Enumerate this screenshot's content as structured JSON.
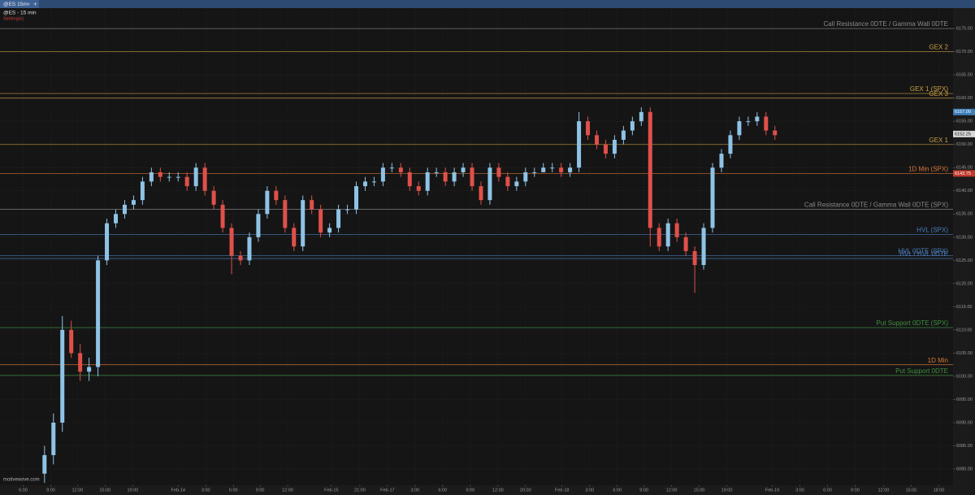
{
  "tab": "@ES 15m",
  "chart_data": {
    "type": "candlestick",
    "title": "@ES - 15 min",
    "subtitle": "Sterling(x)",
    "watermark": "motivewave.com",
    "xlim": [
      0,
      107
    ],
    "ylim": [
      6076.5,
      6179.4
    ],
    "grid": true,
    "up_color": "#8ec3e6",
    "down_color": "#e0504a",
    "x": [
      5,
      6,
      7,
      8,
      9,
      10,
      11,
      12,
      13,
      14,
      15,
      16,
      17,
      18,
      19,
      20,
      21,
      22,
      23,
      24,
      25,
      26,
      27,
      28,
      29,
      30,
      31,
      32,
      33,
      34,
      35,
      36,
      37,
      38,
      39,
      40,
      41,
      42,
      43,
      44,
      45,
      46,
      47,
      48,
      49,
      50,
      51,
      52,
      53,
      54,
      55,
      56,
      57,
      58,
      59,
      60,
      61,
      62,
      63,
      64,
      65,
      66,
      67,
      68,
      69,
      70,
      71,
      72,
      73,
      74,
      75,
      76,
      77,
      78,
      79,
      80,
      81,
      82,
      83,
      84,
      85,
      86,
      87
    ],
    "open": [
      6079,
      6083,
      6090,
      6110,
      6105,
      6101,
      6102,
      6125,
      6133,
      6135,
      6137,
      6138,
      6142,
      6144,
      6143,
      6143,
      6143,
      6141,
      6145,
      6140,
      6137,
      6132,
      6126,
      6125,
      6130,
      6135,
      6140,
      6138,
      6132,
      6128,
      6138,
      6136,
      6131,
      6132,
      6136,
      6136,
      6141,
      6142,
      6142,
      6145,
      6145,
      6144,
      6141,
      6140,
      6144,
      6144,
      6142,
      6144,
      6145,
      6141,
      6138,
      6145,
      6143,
      6141,
      6142,
      6144,
      6144,
      6145,
      6145,
      6144,
      6145,
      6155,
      6152,
      6150,
      6148,
      6151,
      6153,
      6155,
      6157,
      6132,
      6128,
      6133,
      6130,
      6127,
      6124,
      6132,
      6145,
      6148,
      6152,
      6155,
      6155,
      6156,
      6153
    ],
    "high": [
      6085,
      6092,
      6113,
      6112,
      6107,
      6104,
      6126,
      6134,
      6136,
      6138,
      6139,
      6143,
      6145,
      6145,
      6144,
      6144,
      6144,
      6146,
      6146,
      6141,
      6138,
      6133,
      6127,
      6131,
      6136,
      6141,
      6141,
      6139,
      6133,
      6139,
      6139,
      6137,
      6133,
      6137,
      6137,
      6142,
      6143,
      6143,
      6146,
      6146,
      6146,
      6145,
      6142,
      6145,
      6145,
      6145,
      6145,
      6146,
      6146,
      6142,
      6146,
      6146,
      6144,
      6143,
      6145,
      6145,
      6146,
      6146,
      6146,
      6146,
      6157,
      6156,
      6153,
      6151,
      6152,
      6154,
      6156,
      6158,
      6158,
      6133,
      6134,
      6134,
      6131,
      6128,
      6133,
      6146,
      6149,
      6153,
      6156,
      6156,
      6157,
      6157,
      6154
    ],
    "low": [
      6077,
      6081,
      6088,
      6104,
      6099,
      6099,
      6100,
      6124,
      6132,
      6134,
      6136,
      6137,
      6141,
      6142,
      6142,
      6142,
      6140,
      6140,
      6139,
      6136,
      6131,
      6122,
      6124,
      6124,
      6129,
      6134,
      6137,
      6131,
      6127,
      6127,
      6135,
      6130,
      6130,
      6131,
      6135,
      6135,
      6140,
      6141,
      6141,
      6144,
      6143,
      6140,
      6139,
      6139,
      6143,
      6141,
      6141,
      6143,
      6140,
      6137,
      6137,
      6142,
      6140,
      6140,
      6141,
      6143,
      6144,
      6144,
      6143,
      6143,
      6144,
      6151,
      6149,
      6147,
      6147,
      6150,
      6152,
      6154,
      6128,
      6127,
      6127,
      6129,
      6126,
      6118,
      6123,
      6131,
      6144,
      6147,
      6151,
      6154,
      6154,
      6152,
      6151
    ],
    "close": [
      6083,
      6090,
      6110,
      6105,
      6101,
      6102,
      6125,
      6133,
      6135,
      6137,
      6138,
      6142,
      6144,
      6143,
      6143,
      6143,
      6141,
      6145,
      6140,
      6137,
      6132,
      6126,
      6125,
      6130,
      6135,
      6140,
      6138,
      6132,
      6128,
      6138,
      6136,
      6131,
      6132,
      6136,
      6136,
      6141,
      6142,
      6142,
      6145,
      6145,
      6144,
      6141,
      6140,
      6144,
      6144,
      6142,
      6144,
      6145,
      6141,
      6138,
      6145,
      6143,
      6141,
      6142,
      6144,
      6144,
      6145,
      6145,
      6144,
      6145,
      6155,
      6152,
      6150,
      6148,
      6151,
      6153,
      6155,
      6157,
      6132,
      6128,
      6133,
      6130,
      6127,
      6124,
      6132,
      6145,
      6148,
      6152,
      6155,
      6155,
      6156,
      6153,
      6152
    ],
    "xticks": [
      {
        "value": 2.6,
        "label": "6:00"
      },
      {
        "value": 5.7,
        "label": "9:00"
      },
      {
        "value": 8.7,
        "label": "12:00"
      },
      {
        "value": 11.8,
        "label": "15:00"
      },
      {
        "value": 14.9,
        "label": "19:00"
      },
      {
        "value": 20.0,
        "label": "Feb-14"
      },
      {
        "value": 23.1,
        "label": "3:00"
      },
      {
        "value": 26.2,
        "label": "6:00"
      },
      {
        "value": 29.2,
        "label": "9:00"
      },
      {
        "value": 32.3,
        "label": "12:00"
      },
      {
        "value": 37.2,
        "label": "Feb-15"
      },
      {
        "value": 40.4,
        "label": "21:00"
      },
      {
        "value": 43.5,
        "label": "Feb-17"
      },
      {
        "value": 46.6,
        "label": "3:00"
      },
      {
        "value": 49.7,
        "label": "6:00"
      },
      {
        "value": 52.8,
        "label": "9:00"
      },
      {
        "value": 55.9,
        "label": "12:00"
      },
      {
        "value": 59.0,
        "label": "20:00"
      },
      {
        "value": 63.1,
        "label": "Feb-18"
      },
      {
        "value": 66.2,
        "label": "3:00"
      },
      {
        "value": 69.3,
        "label": "6:00"
      },
      {
        "value": 72.3,
        "label": "9:00"
      },
      {
        "value": 75.4,
        "label": "12:00"
      },
      {
        "value": 78.5,
        "label": "15:00"
      },
      {
        "value": 81.6,
        "label": "19:00"
      },
      {
        "value": 86.7,
        "label": "Feb-19"
      },
      {
        "value": 89.8,
        "label": "3:00"
      },
      {
        "value": 92.9,
        "label": "6:00"
      },
      {
        "value": 96.0,
        "label": "9:00"
      },
      {
        "value": 99.2,
        "label": "12:00"
      },
      {
        "value": 102.3,
        "label": "15:00"
      },
      {
        "value": 105.4,
        "label": "18:00"
      }
    ],
    "yticks": [
      {
        "value": 6080,
        "label": "6080.00"
      },
      {
        "value": 6085,
        "label": "6085.00"
      },
      {
        "value": 6090,
        "label": "6090.00"
      },
      {
        "value": 6095,
        "label": "6095.00"
      },
      {
        "value": 6100,
        "label": "6100.00"
      },
      {
        "value": 6105,
        "label": "6105.00"
      },
      {
        "value": 6110,
        "label": "6110.00"
      },
      {
        "value": 6115,
        "label": "6115.00"
      },
      {
        "value": 6120,
        "label": "6120.00"
      },
      {
        "value": 6125,
        "label": "6125.00"
      },
      {
        "value": 6130,
        "label": "6130.00"
      },
      {
        "value": 6135,
        "label": "6135.00"
      },
      {
        "value": 6140,
        "label": "6140.00"
      },
      {
        "value": 6145,
        "label": "6145.00"
      },
      {
        "value": 6150,
        "label": "6150.00"
      },
      {
        "value": 6155,
        "label": "6155.00"
      },
      {
        "value": 6160,
        "label": "6160.00"
      },
      {
        "value": 6165,
        "label": "6165.00"
      },
      {
        "value": 6170,
        "label": "6170.00"
      },
      {
        "value": 6175,
        "label": "6175.00"
      }
    ],
    "levels": [
      {
        "name": "Call Resistance 0DTE / Gamma Wall 0DTE",
        "value": 6175,
        "color": "#8a8a8a"
      },
      {
        "name": "GEX 2",
        "value": 6170,
        "color": "#c9a042"
      },
      {
        "name": "GEX 1 (SPX)",
        "value": 6161,
        "color": "#c9a042"
      },
      {
        "name": "GEX 3",
        "value": 6160,
        "color": "#c9a042"
      },
      {
        "name": "GEX 1",
        "value": 6150,
        "color": "#c9a042"
      },
      {
        "name": "1D Min (SPX)",
        "value": 6143.75,
        "color": "#d9773a"
      },
      {
        "name": "Call Resistance 0DTE / Gamma Wall 0DTE (SPX)",
        "value": 6136,
        "color": "#8a8a8a"
      },
      {
        "name": "HVL (SPX)",
        "value": 6130.6,
        "color": "#4a7fc0"
      },
      {
        "name": "HVL 0DTE (SPX)",
        "value": 6126,
        "color": "#4a7fc0"
      },
      {
        "name": "HVL / HVL 0DTE",
        "value": 6125.4,
        "color": "#4a7fc0"
      },
      {
        "name": "Put Support 0DTE (SPX)",
        "value": 6110.5,
        "color": "#3f8f3f"
      },
      {
        "name": "1D Min",
        "value": 6102.5,
        "color": "#d9773a"
      },
      {
        "name": "Put Support 0DTE",
        "value": 6100.2,
        "color": "#3f8f3f"
      }
    ],
    "price_tags": [
      {
        "value": 6157,
        "label": "6157.00",
        "color": "#3d7fb8"
      },
      {
        "value": 6152.25,
        "label": "6152.25",
        "color": "#d8d8d8"
      },
      {
        "value": 6143.75,
        "label": "6143.75",
        "color": "#c0392b"
      }
    ]
  }
}
